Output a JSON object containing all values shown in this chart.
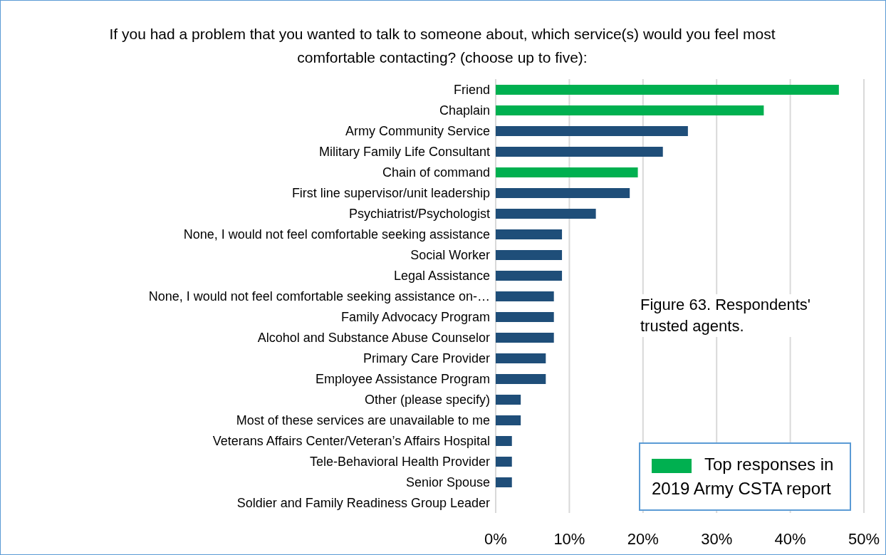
{
  "chart_data": {
    "type": "bar",
    "orientation": "horizontal",
    "stacked": true,
    "title": "If you had a problem that you wanted to talk to someone about, which service(s) would you feel most comfortable contacting? (choose up to five):",
    "categories": [
      "Friend",
      "Chaplain",
      "Army Community Service",
      "Military Family Life Consultant",
      "Chain of command",
      "First line supervisor/unit leadership",
      "Psychiatrist/Psychologist",
      "None, I would not feel comfortable seeking assistance",
      "Social Worker",
      "Legal Assistance",
      "None, I would not feel comfortable seeking assistance on-…",
      "Family Advocacy Program",
      "Alcohol and Substance Abuse Counselor",
      "Primary Care Provider",
      "Employee Assistance Program",
      "Other (please specify)",
      "Most of these services are unavailable to me",
      "Veterans Affairs Center/Veteran’s Affairs Hospital",
      "Tele-Behavioral Health Provider",
      "Senior Spouse",
      "Soldier and Family Readiness Group Leader"
    ],
    "series": [
      {
        "color": "#1f4e79",
        "values": [
          null,
          null,
          26.1,
          22.7,
          null,
          18.2,
          13.6,
          9.0,
          9.0,
          9.0,
          7.9,
          7.9,
          7.9,
          6.8,
          6.8,
          3.4,
          3.4,
          2.2,
          2.2,
          2.2,
          0
        ]
      },
      {
        "name": "Top responses in 2019 Army CSTA report",
        "color": "#00b050",
        "values": [
          46.6,
          36.4,
          null,
          null,
          19.3,
          null,
          null,
          null,
          null,
          null,
          null,
          null,
          null,
          null,
          null,
          null,
          null,
          null,
          null,
          null,
          null
        ]
      }
    ],
    "xlim": [
      0,
      50
    ],
    "xticks": [
      {
        "value": 0,
        "label": "0%"
      },
      {
        "value": 10,
        "label": "10%"
      },
      {
        "value": 20,
        "label": "20%"
      },
      {
        "value": 30,
        "label": "30%"
      },
      {
        "value": 40,
        "label": "40%"
      },
      {
        "value": 50,
        "label": "50%"
      }
    ],
    "grid": "x",
    "legend": "bottom right",
    "annotations": [
      "Figure 63. Respondents' trusted agents."
    ]
  }
}
